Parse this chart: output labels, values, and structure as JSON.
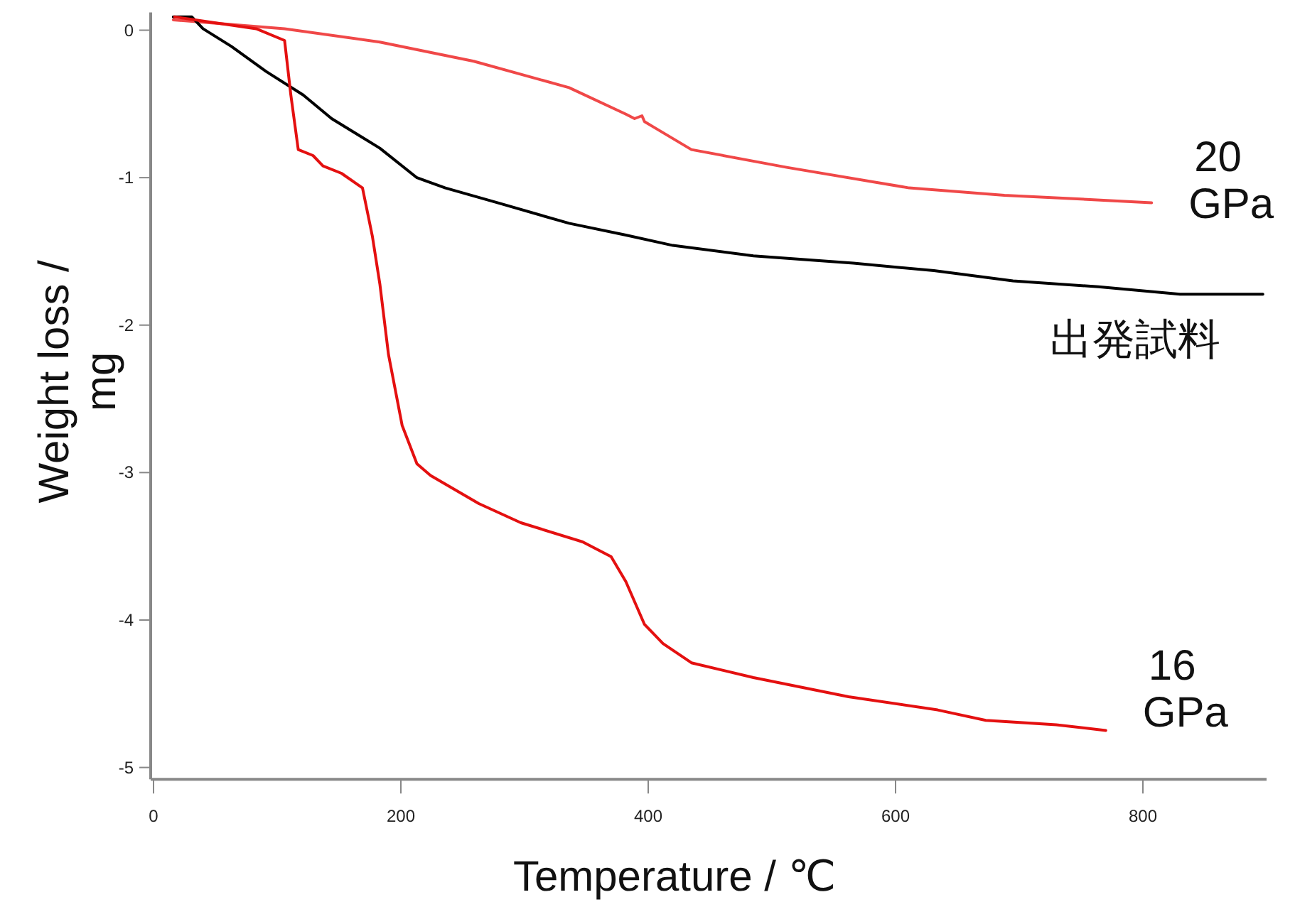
{
  "chart_data": {
    "type": "line",
    "xlabel": "Temperature / ℃",
    "ylabel": "Weight loss / mg",
    "xlim": [
      0,
      900
    ],
    "ylim": [
      -5.08,
      0.12
    ],
    "xticks": [
      0,
      200,
      400,
      600,
      800
    ],
    "yticks": [
      0,
      -1,
      -2,
      -3,
      -4,
      -5
    ],
    "grid": false,
    "marker": "none",
    "line_style": "solid",
    "series": [
      {
        "name": "20 GPa",
        "color": "#f04848",
        "x": [
          16,
          106,
          183,
          259,
          336,
          382,
          389,
          395,
          397,
          405,
          435,
          512,
          611,
          688,
          738,
          807
        ],
        "values": [
          0.07,
          0.01,
          -0.08,
          -0.21,
          -0.39,
          -0.57,
          -0.6,
          -0.58,
          -0.62,
          -0.66,
          -0.81,
          -0.93,
          -1.07,
          -1.12,
          -1.14,
          -1.17
        ]
      },
      {
        "name": "出発試料",
        "color": "#000000",
        "x": [
          16,
          31,
          40,
          63,
          91,
          121,
          144,
          183,
          213,
          236,
          278,
          336,
          382,
          420,
          485,
          566,
          631,
          695,
          764,
          830,
          897
        ],
        "values": [
          0.09,
          0.09,
          0.01,
          -0.11,
          -0.28,
          -0.44,
          -0.6,
          -0.8,
          -1.0,
          -1.07,
          -1.17,
          -1.31,
          -1.39,
          -1.46,
          -1.53,
          -1.58,
          -1.63,
          -1.7,
          -1.74,
          -1.79,
          -1.79
        ]
      },
      {
        "name": "16 GPa",
        "color": "#e41010",
        "x": [
          17,
          83,
          106,
          111,
          117,
          129,
          137,
          152,
          169,
          177,
          183,
          190,
          201,
          213,
          224,
          263,
          297,
          347,
          370,
          382,
          397,
          412,
          435,
          485,
          562,
          634,
          673,
          730,
          770
        ],
        "values": [
          0.09,
          0.01,
          -0.07,
          -0.44,
          -0.81,
          -0.85,
          -0.92,
          -0.97,
          -1.07,
          -1.4,
          -1.72,
          -2.2,
          -2.68,
          -2.94,
          -3.02,
          -3.21,
          -3.34,
          -3.47,
          -3.57,
          -3.74,
          -4.03,
          -4.16,
          -4.29,
          -4.39,
          -4.52,
          -4.61,
          -4.68,
          -4.71,
          -4.75
        ]
      }
    ]
  }
}
